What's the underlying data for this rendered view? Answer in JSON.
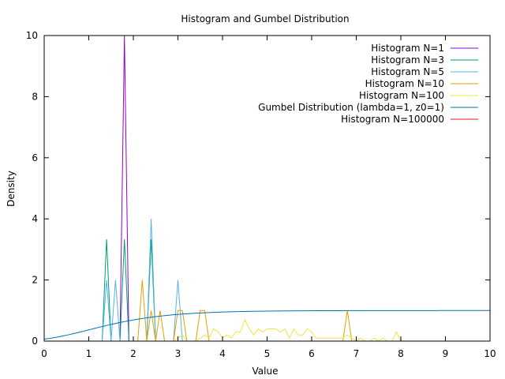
{
  "chart_data": {
    "type": "line",
    "title": "Histogram and Gumbel Distribution",
    "xlabel": "Value",
    "ylabel": "Density",
    "xlim": [
      0,
      10
    ],
    "ylim": [
      0,
      10
    ],
    "xticks": [
      0,
      1,
      2,
      3,
      4,
      5,
      6,
      7,
      8,
      9,
      10
    ],
    "yticks": [
      0,
      2,
      4,
      6,
      8,
      10
    ],
    "grid": false,
    "legend_position": "top-right",
    "series": [
      {
        "name": "Histogram N=1",
        "color": "#9400d3",
        "x": [
          0,
          1.7,
          1.8,
          1.9,
          2.0,
          10
        ],
        "y": [
          0,
          0,
          10,
          0,
          0,
          0
        ]
      },
      {
        "name": "Histogram N=3",
        "color": "#009e73",
        "x": [
          0,
          1.3,
          1.4,
          1.5,
          1.7,
          1.8,
          1.9,
          2.3,
          2.4,
          2.5,
          10
        ],
        "y": [
          0,
          0,
          3.33,
          0,
          0,
          3.33,
          0,
          0,
          3.33,
          0,
          0
        ]
      },
      {
        "name": "Histogram N=5",
        "color": "#56b4e9",
        "x": [
          0,
          1.3,
          1.4,
          1.5,
          1.6,
          1.7,
          1.8,
          2.3,
          2.4,
          2.5,
          2.9,
          3.0,
          3.1,
          10
        ],
        "y": [
          0,
          0,
          2,
          0,
          2,
          0,
          0,
          0,
          4,
          0,
          0,
          2,
          0,
          0
        ]
      },
      {
        "name": "Histogram N=10",
        "color": "#e69f00",
        "x": [
          0,
          2.1,
          2.2,
          2.3,
          2.4,
          2.5,
          2.6,
          2.7,
          2.9,
          3.0,
          3.1,
          3.2,
          3.4,
          3.5,
          3.6,
          3.7,
          6.7,
          6.8,
          6.9,
          10
        ],
        "y": [
          0,
          0,
          2,
          0,
          1,
          0,
          1,
          0,
          0,
          1,
          1,
          0,
          0,
          1,
          1,
          0,
          0,
          1,
          0,
          0
        ]
      },
      {
        "name": "Histogram N=100",
        "color": "#f0e442",
        "x": [
          0,
          2.9,
          3.0,
          3.1,
          3.2,
          3.3,
          3.4,
          3.5,
          3.6,
          3.7,
          3.8,
          3.9,
          4.0,
          4.1,
          4.2,
          4.3,
          4.4,
          4.5,
          4.6,
          4.7,
          4.8,
          4.9,
          5.0,
          5.1,
          5.2,
          5.3,
          5.4,
          5.5,
          5.6,
          5.7,
          5.8,
          5.9,
          6.0,
          6.1,
          6.2,
          6.3,
          6.4,
          6.5,
          6.6,
          6.7,
          6.8,
          6.9,
          7.0,
          7.1,
          7.2,
          7.3,
          7.4,
          7.5,
          7.6,
          7.7,
          7.8,
          7.9,
          8.0,
          8.1,
          10
        ],
        "y": [
          0,
          0,
          0.1,
          0.2,
          0,
          0,
          0,
          0.1,
          0.2,
          0.1,
          0.4,
          0.3,
          0.1,
          0.2,
          0.1,
          0.3,
          0.3,
          0.7,
          0.4,
          0.2,
          0.4,
          0.3,
          0.4,
          0.4,
          0.4,
          0.3,
          0.4,
          0.1,
          0.4,
          0.2,
          0.2,
          0.4,
          0.3,
          0.1,
          0.1,
          0.1,
          0.1,
          0.1,
          0.1,
          0.1,
          0.2,
          0.1,
          0,
          0.1,
          0,
          0,
          0.1,
          0,
          0.1,
          0,
          0,
          0.3,
          0,
          0,
          0
        ]
      },
      {
        "name": "Gumbel Distribution (lambda=1, z0=1)",
        "color": "#0072b2",
        "function": "gumbel_cdf",
        "lambda": 1,
        "z0": 1
      },
      {
        "name": "Histogram N=100000",
        "color": "#e51e10",
        "x": [
          0,
          10
        ],
        "y": [
          0,
          0
        ]
      }
    ]
  }
}
